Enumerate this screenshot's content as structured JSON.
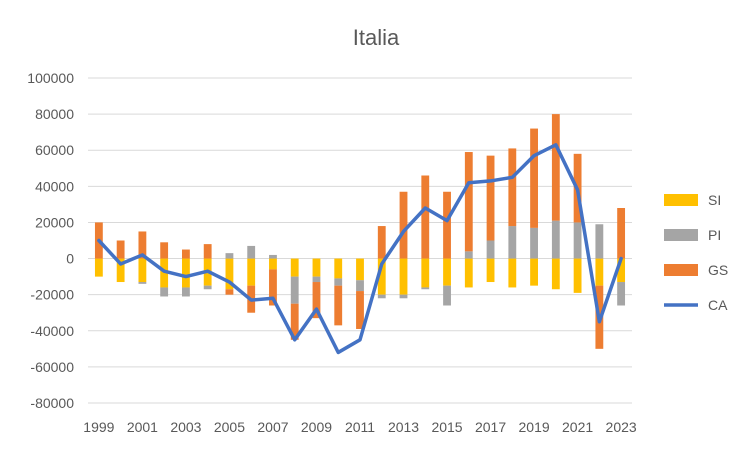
{
  "chart_data": {
    "type": "bar",
    "title": "Italia",
    "xlabel": "",
    "ylabel": "",
    "stacked": true,
    "ylim": [
      -80000,
      100000
    ],
    "ytick_step": 20000,
    "grid": true,
    "legend_position": "right",
    "categories": [
      "1999",
      "2000",
      "2001",
      "2002",
      "2003",
      "2004",
      "2005",
      "2006",
      "2007",
      "2008",
      "2009",
      "2010",
      "2011",
      "2012",
      "2013",
      "2014",
      "2015",
      "2016",
      "2017",
      "2018",
      "2019",
      "2020",
      "2021",
      "2022",
      "2023"
    ],
    "x_tick_labels": [
      "1999",
      "2001",
      "2003",
      "2005",
      "2007",
      "2009",
      "2011",
      "2013",
      "2015",
      "2017",
      "2019",
      "2021",
      "2023"
    ],
    "series": [
      {
        "name": "SI",
        "kind": "bar",
        "color": "#FFC000",
        "values": [
          -10000,
          -13000,
          -13000,
          -16000,
          -16000,
          -15000,
          -17000,
          -15000,
          -6000,
          -10000,
          -10000,
          -11000,
          -12000,
          -20000,
          -20000,
          -16000,
          -15000,
          -16000,
          -13000,
          -16000,
          -15000,
          -17000,
          -19000,
          -15000,
          -13000
        ]
      },
      {
        "name": "PI",
        "kind": "bar",
        "color": "#A5A5A5",
        "values": [
          0,
          0,
          -1000,
          -5000,
          -5000,
          -2000,
          3000,
          7000,
          2000,
          -15000,
          -3000,
          -4000,
          -6000,
          -2000,
          -2000,
          -1000,
          -11000,
          4000,
          10000,
          18000,
          17000,
          21000,
          20000,
          19000,
          -13000
        ]
      },
      {
        "name": "GS",
        "kind": "bar",
        "color": "#ED7D31",
        "values": [
          20000,
          10000,
          15000,
          9000,
          5000,
          8000,
          -3000,
          -15000,
          -20000,
          -20000,
          -20000,
          -22000,
          -21000,
          18000,
          37000,
          46000,
          37000,
          55000,
          47000,
          43000,
          55000,
          59000,
          38000,
          -35000,
          28000
        ]
      },
      {
        "name": "CA",
        "kind": "line",
        "color": "#4472C4",
        "values": [
          10000,
          -3000,
          2000,
          -7000,
          -10000,
          -7000,
          -13000,
          -23000,
          -22000,
          -45000,
          -28000,
          -52000,
          -45000,
          -3000,
          15000,
          28000,
          21000,
          42000,
          43000,
          45000,
          57000,
          63000,
          38000,
          -35000,
          0
        ]
      }
    ]
  }
}
